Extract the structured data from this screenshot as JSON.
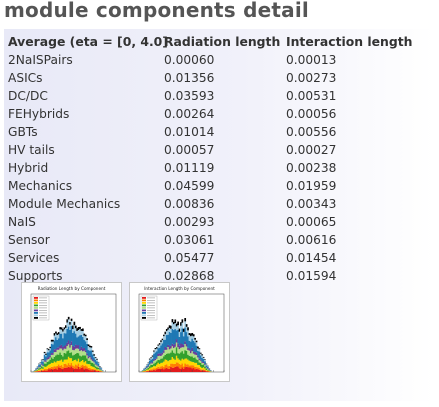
{
  "page": {
    "title": "module components detail"
  },
  "table": {
    "headers": [
      "Average (eta = [0, 4.0]",
      "Radiation length",
      "Interaction length"
    ],
    "rows": [
      {
        "name": "2NaISPairs",
        "rad": "0.00060",
        "int": "0.00013"
      },
      {
        "name": "ASICs",
        "rad": "0.01356",
        "int": "0.00273"
      },
      {
        "name": "DC/DC",
        "rad": "0.03593",
        "int": "0.00531"
      },
      {
        "name": "FEHybrids",
        "rad": "0.00264",
        "int": "0.00056"
      },
      {
        "name": "GBTs",
        "rad": "0.01014",
        "int": "0.00556"
      },
      {
        "name": "HV tails",
        "rad": "0.00057",
        "int": "0.00027"
      },
      {
        "name": "Hybrid",
        "rad": "0.01119",
        "int": "0.00238"
      },
      {
        "name": "Mechanics",
        "rad": "0.04599",
        "int": "0.01959"
      },
      {
        "name": "Module Mechanics",
        "rad": "0.00836",
        "int": "0.00343"
      },
      {
        "name": "NaIS",
        "rad": "0.00293",
        "int": "0.00065"
      },
      {
        "name": "Sensor",
        "rad": "0.03061",
        "int": "0.00616"
      },
      {
        "name": "Services",
        "rad": "0.05477",
        "int": "0.01454"
      },
      {
        "name": "Supports",
        "rad": "0.02868",
        "int": "0.01594"
      }
    ]
  },
  "thumbnails": [
    {
      "title": "Radiation Length by Component"
    },
    {
      "title": "Interaction Length by Component"
    }
  ],
  "colors": {
    "title": "#555555",
    "panel_gradient_start": "#e8e9f7",
    "text": "#333333",
    "stack": [
      "#e31a1c",
      "#ff7f00",
      "#ffd700",
      "#33a02c",
      "#b2df8a",
      "#6a3d9a",
      "#1f78b4",
      "#a6cee3",
      "#000000"
    ]
  }
}
